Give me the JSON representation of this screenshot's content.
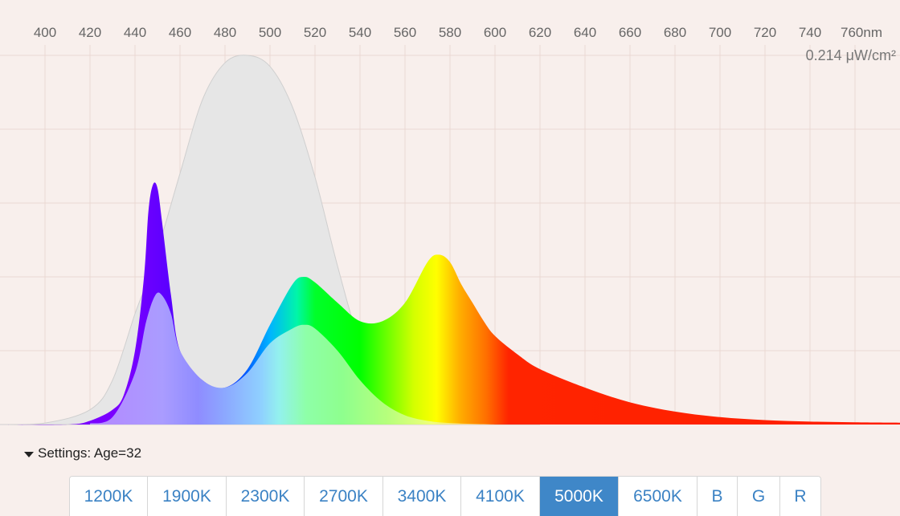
{
  "chart_data": {
    "type": "area",
    "unit_x": "nm",
    "x_ticks": [
      400,
      420,
      440,
      460,
      480,
      500,
      520,
      540,
      560,
      580,
      600,
      620,
      640,
      660,
      680,
      700,
      720,
      740,
      760
    ],
    "x_tick_labels": [
      "400",
      "420",
      "440",
      "460",
      "480",
      "500",
      "520",
      "540",
      "560",
      "580",
      "600",
      "620",
      "640",
      "660",
      "680",
      "700",
      "720",
      "740",
      "760nm"
    ],
    "xlim": [
      380,
      780
    ],
    "ylim": [
      0,
      1.0
    ],
    "irradiance_label": "0.214 μW/cm²",
    "series": [
      {
        "name": "reference",
        "x": [
          380,
          400,
          420,
          430,
          440,
          445,
          450,
          460,
          470,
          480,
          490,
          500,
          510,
          520,
          530,
          540,
          550,
          560,
          570,
          580,
          600,
          620
        ],
        "y": [
          0,
          0.004,
          0.04,
          0.12,
          0.3,
          0.38,
          0.47,
          0.68,
          0.88,
          0.98,
          1.0,
          0.97,
          0.86,
          0.67,
          0.43,
          0.22,
          0.1,
          0.04,
          0.015,
          0.006,
          0.002,
          0
        ]
      },
      {
        "name": "spectrum",
        "x": [
          380,
          410,
          420,
          430,
          435,
          440,
          444,
          446,
          448,
          450,
          452,
          456,
          460,
          470,
          480,
          490,
          500,
          510,
          515,
          520,
          530,
          540,
          550,
          560,
          570,
          575,
          580,
          585,
          590,
          595,
          600,
          610,
          620,
          640,
          660,
          680,
          700,
          720,
          740,
          760,
          780
        ],
        "y": [
          0,
          0,
          0.01,
          0.04,
          0.08,
          0.2,
          0.4,
          0.58,
          0.65,
          0.64,
          0.55,
          0.35,
          0.2,
          0.12,
          0.1,
          0.15,
          0.27,
          0.38,
          0.4,
          0.385,
          0.33,
          0.28,
          0.28,
          0.33,
          0.44,
          0.46,
          0.44,
          0.38,
          0.33,
          0.28,
          0.24,
          0.19,
          0.15,
          0.1,
          0.06,
          0.035,
          0.02,
          0.012,
          0.008,
          0.006,
          0.005
        ]
      },
      {
        "name": "reference_overlap",
        "x": [
          420,
          430,
          440,
          445,
          449,
          452,
          456,
          460,
          470,
          480,
          490,
          500,
          510,
          515,
          520,
          530,
          540,
          550,
          560,
          570,
          580,
          600
        ],
        "y": [
          0.003,
          0.02,
          0.14,
          0.28,
          0.35,
          0.35,
          0.3,
          0.2,
          0.12,
          0.1,
          0.14,
          0.22,
          0.26,
          0.27,
          0.26,
          0.2,
          0.12,
          0.06,
          0.025,
          0.01,
          0.004,
          0
        ]
      }
    ]
  },
  "settings": {
    "label": "Settings: Age=32"
  },
  "buttons": {
    "items": [
      "1200K",
      "1900K",
      "2300K",
      "2700K",
      "3400K",
      "4100K",
      "5000K",
      "6500K",
      "B",
      "G",
      "R"
    ],
    "active": "5000K"
  },
  "colors": {
    "background": "#f8efec",
    "grid": "#ead8d3",
    "reference_fill": "#e6e6e6",
    "accent": "#3f87c8"
  }
}
